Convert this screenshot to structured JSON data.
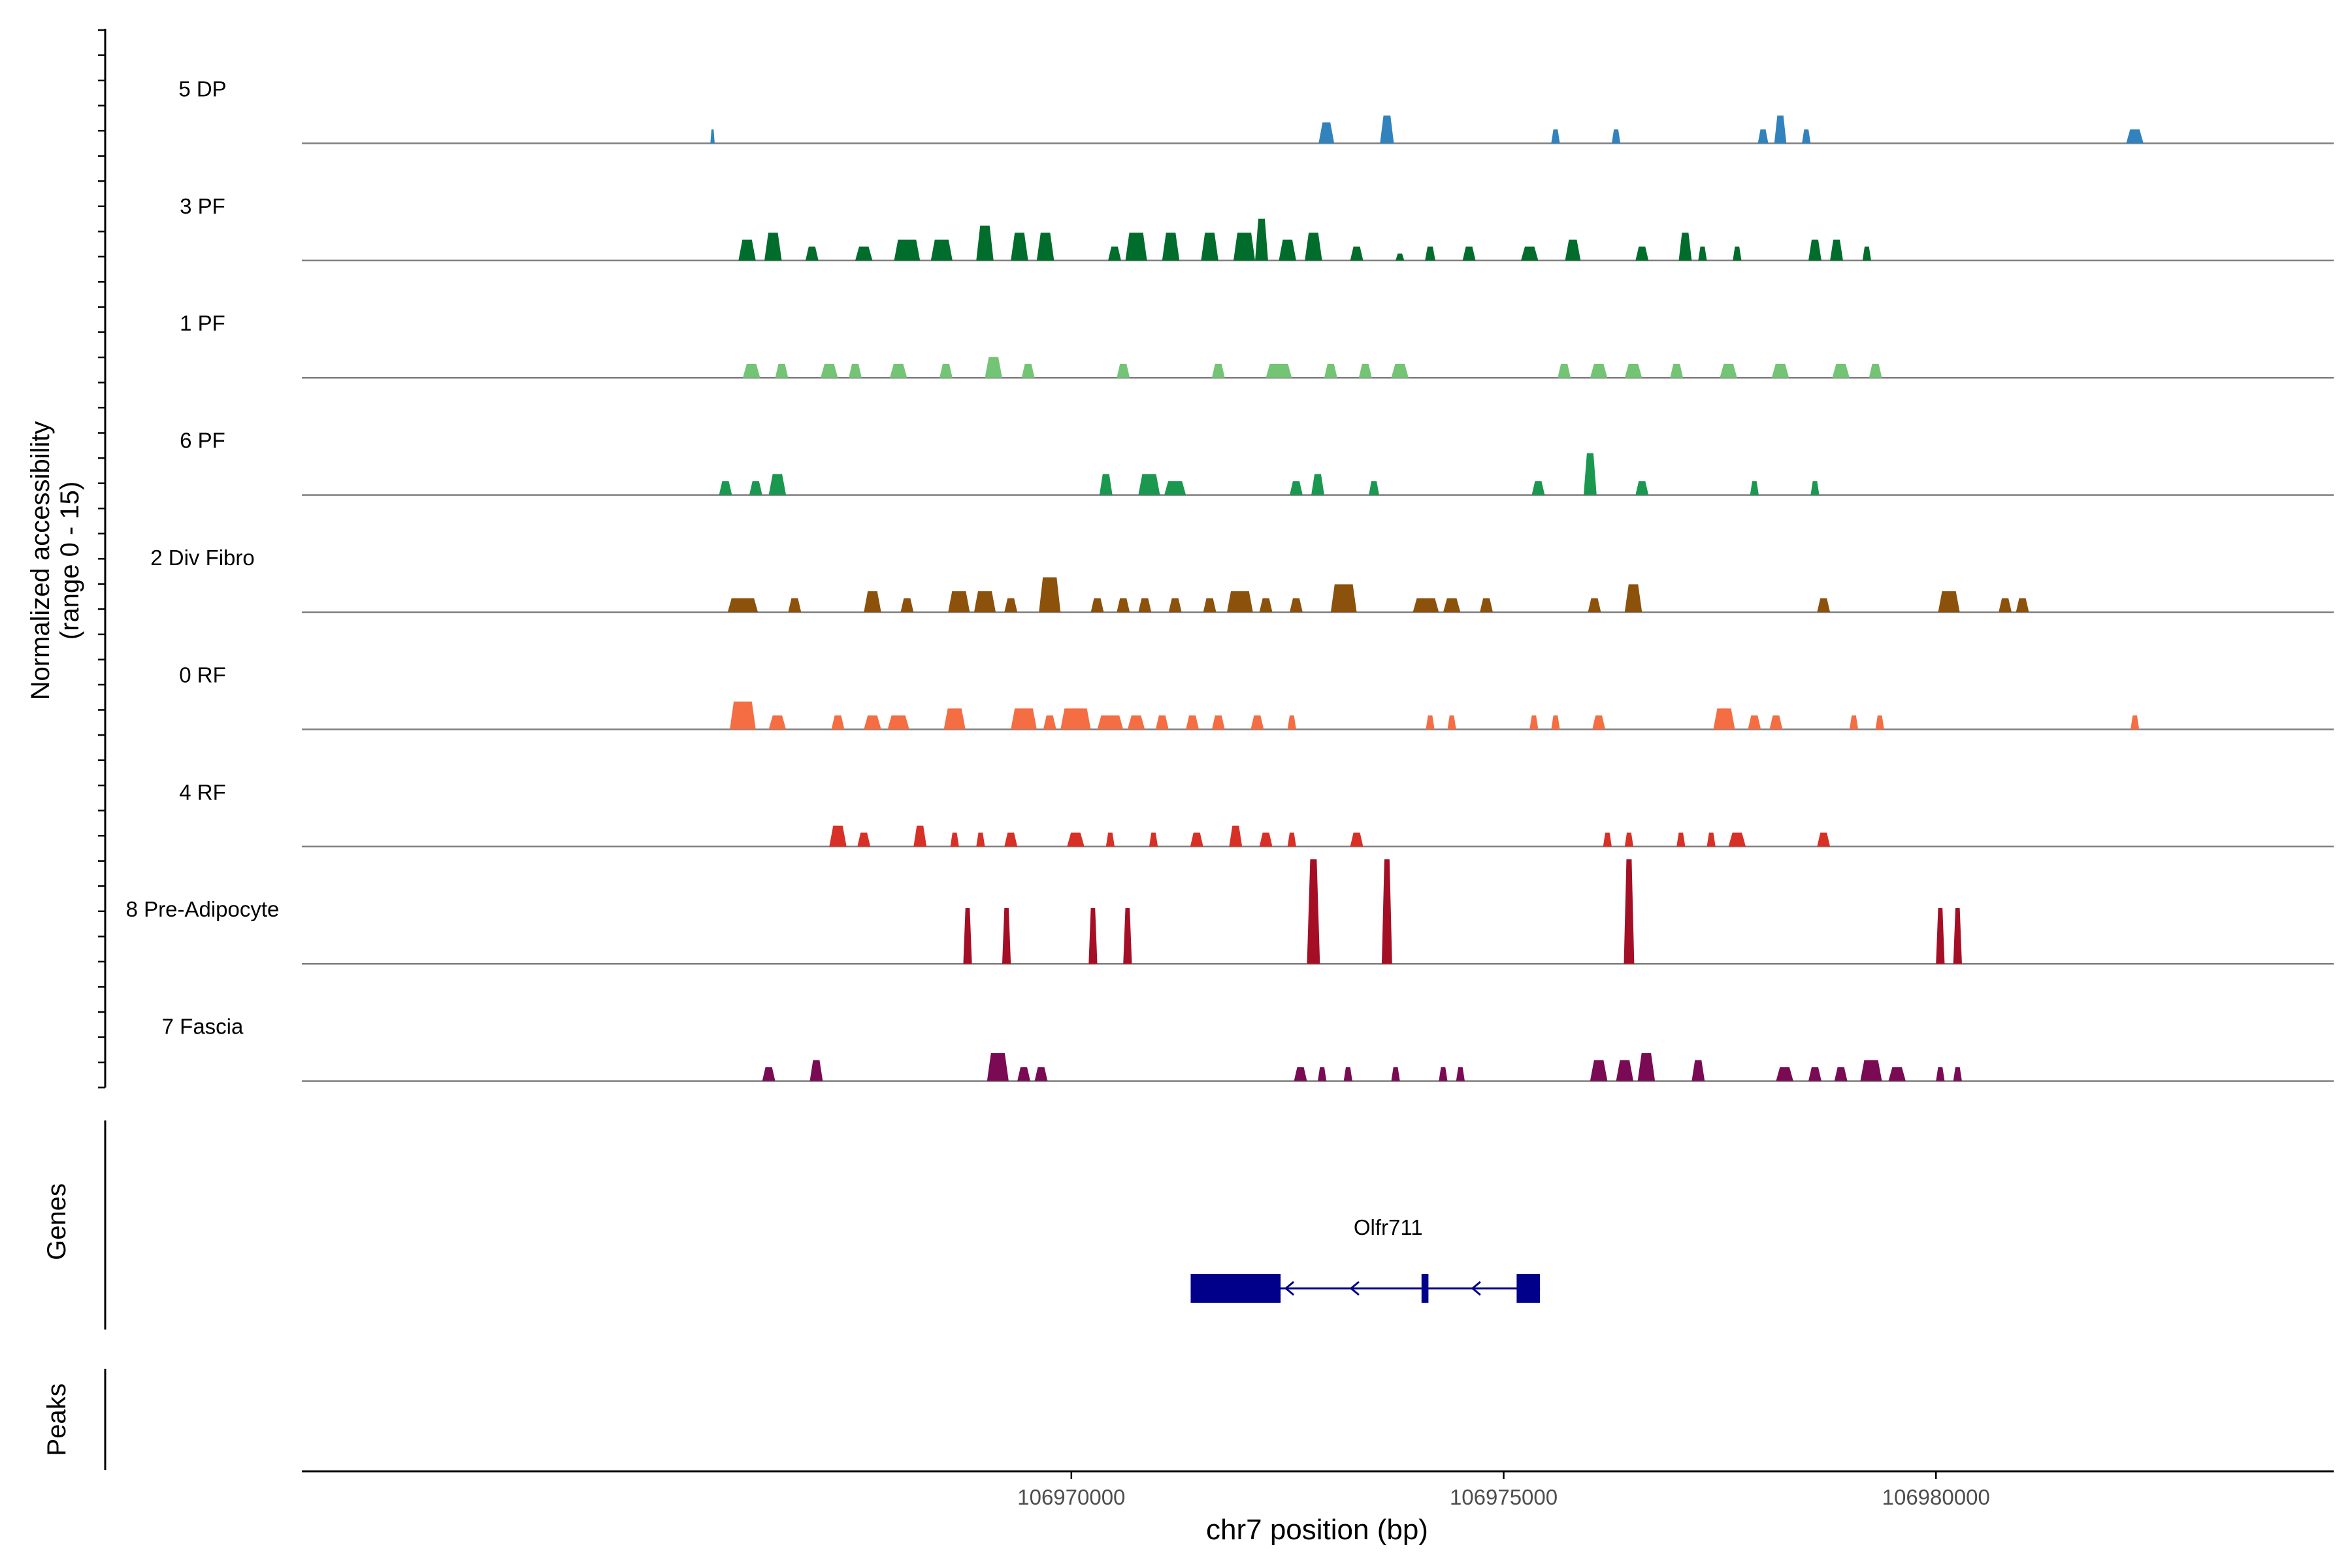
{
  "chart_data": {
    "type": "area",
    "title": "",
    "chromosome": "chr7",
    "xlabel": "chr7 position (bp)",
    "ylabel": "Normalized accessibility",
    "ylabel_range": "(range 0 - 15)",
    "xlim": [
      106961100,
      106984600
    ],
    "ylim": [
      0,
      15
    ],
    "x_ticks": [
      {
        "value": 106970000,
        "label": "106970000"
      },
      {
        "value": 106975000,
        "label": "106975000"
      },
      {
        "value": 106980000,
        "label": "106980000"
      }
    ],
    "series": [
      {
        "name": "5 DP",
        "color": "#3182BD",
        "peaks": [
          [
            106965850,
            50,
            2
          ],
          [
            106972950,
            180,
            3
          ],
          [
            106973650,
            160,
            4
          ],
          [
            106975600,
            100,
            2
          ],
          [
            106976300,
            100,
            2
          ],
          [
            106978000,
            120,
            2
          ],
          [
            106978200,
            140,
            4
          ],
          [
            106978500,
            100,
            2
          ],
          [
            106982300,
            200,
            2
          ]
        ]
      },
      {
        "name": "3 PF",
        "color": "#006D2C",
        "peaks": [
          [
            106966250,
            200,
            3
          ],
          [
            106966550,
            200,
            4
          ],
          [
            106967000,
            150,
            2
          ],
          [
            106967600,
            200,
            2
          ],
          [
            106968100,
            300,
            3
          ],
          [
            106968500,
            250,
            3
          ],
          [
            106969000,
            200,
            5
          ],
          [
            106969400,
            200,
            4
          ],
          [
            106969700,
            200,
            4
          ],
          [
            106970500,
            150,
            2
          ],
          [
            106970750,
            250,
            4
          ],
          [
            106971150,
            200,
            4
          ],
          [
            106971600,
            200,
            4
          ],
          [
            106972000,
            250,
            4
          ],
          [
            106972200,
            150,
            6
          ],
          [
            106972500,
            200,
            3
          ],
          [
            106972800,
            200,
            4
          ],
          [
            106973300,
            150,
            2
          ],
          [
            106973800,
            100,
            1
          ],
          [
            106974150,
            120,
            2
          ],
          [
            106974600,
            150,
            2
          ],
          [
            106975300,
            200,
            2
          ],
          [
            106975800,
            180,
            3
          ],
          [
            106976600,
            150,
            2
          ],
          [
            106977100,
            150,
            4
          ],
          [
            106977300,
            100,
            2
          ],
          [
            106977700,
            100,
            2
          ],
          [
            106978600,
            150,
            3
          ],
          [
            106978850,
            150,
            3
          ],
          [
            106979200,
            100,
            2
          ]
        ]
      },
      {
        "name": "1 PF",
        "color": "#74C476",
        "peaks": [
          [
            106966300,
            200,
            2
          ],
          [
            106966650,
            150,
            2
          ],
          [
            106967200,
            200,
            2
          ],
          [
            106967500,
            150,
            2
          ],
          [
            106968000,
            200,
            2
          ],
          [
            106968550,
            150,
            2
          ],
          [
            106969100,
            200,
            3
          ],
          [
            106969500,
            150,
            2
          ],
          [
            106970600,
            150,
            2
          ],
          [
            106971700,
            150,
            2
          ],
          [
            106972400,
            300,
            2
          ],
          [
            106973000,
            150,
            2
          ],
          [
            106973400,
            150,
            2
          ],
          [
            106973800,
            200,
            2
          ],
          [
            106975700,
            150,
            2
          ],
          [
            106976100,
            200,
            2
          ],
          [
            106976500,
            200,
            2
          ],
          [
            106977000,
            150,
            2
          ],
          [
            106977600,
            200,
            2
          ],
          [
            106978200,
            200,
            2
          ],
          [
            106978900,
            200,
            2
          ],
          [
            106979300,
            150,
            2
          ]
        ]
      },
      {
        "name": "6 PF",
        "color": "#1A9850",
        "peaks": [
          [
            106966000,
            150,
            2
          ],
          [
            106966350,
            150,
            2
          ],
          [
            106966600,
            200,
            3
          ],
          [
            106970400,
            150,
            3
          ],
          [
            106970900,
            250,
            3
          ],
          [
            106971200,
            250,
            2
          ],
          [
            106972600,
            150,
            2
          ],
          [
            106972850,
            150,
            3
          ],
          [
            106973500,
            120,
            2
          ],
          [
            106975400,
            150,
            2
          ],
          [
            106976000,
            150,
            6
          ],
          [
            106976600,
            150,
            2
          ],
          [
            106977900,
            100,
            2
          ],
          [
            106978600,
            100,
            2
          ]
        ]
      },
      {
        "name": "2 Div Fibro",
        "color": "#8C510A",
        "peaks": [
          [
            106966200,
            350,
            2
          ],
          [
            106966800,
            150,
            2
          ],
          [
            106967700,
            200,
            3
          ],
          [
            106968100,
            150,
            2
          ],
          [
            106968700,
            250,
            3
          ],
          [
            106969000,
            250,
            3
          ],
          [
            106969300,
            150,
            2
          ],
          [
            106969750,
            250,
            5
          ],
          [
            106970300,
            150,
            2
          ],
          [
            106970600,
            150,
            2
          ],
          [
            106970850,
            150,
            2
          ],
          [
            106971200,
            150,
            2
          ],
          [
            106971600,
            150,
            2
          ],
          [
            106971950,
            300,
            3
          ],
          [
            106972250,
            150,
            2
          ],
          [
            106972600,
            150,
            2
          ],
          [
            106973150,
            300,
            4
          ],
          [
            106974100,
            300,
            2
          ],
          [
            106974400,
            200,
            2
          ],
          [
            106974800,
            150,
            2
          ],
          [
            106976050,
            150,
            2
          ],
          [
            106976500,
            200,
            4
          ],
          [
            106978700,
            150,
            2
          ],
          [
            106980150,
            250,
            3
          ],
          [
            106980800,
            150,
            2
          ],
          [
            106981000,
            150,
            2
          ]
        ]
      },
      {
        "name": "0 RF",
        "color": "#F46D43",
        "peaks": [
          [
            106966200,
            300,
            4
          ],
          [
            106966600,
            200,
            2
          ],
          [
            106967300,
            150,
            2
          ],
          [
            106967700,
            200,
            2
          ],
          [
            106968000,
            250,
            2
          ],
          [
            106968650,
            250,
            3
          ],
          [
            106969450,
            300,
            3
          ],
          [
            106969750,
            150,
            2
          ],
          [
            106970050,
            350,
            3
          ],
          [
            106970450,
            300,
            2
          ],
          [
            106970750,
            200,
            2
          ],
          [
            106971050,
            150,
            2
          ],
          [
            106971400,
            150,
            2
          ],
          [
            106971700,
            150,
            2
          ],
          [
            106972150,
            150,
            2
          ],
          [
            106972550,
            100,
            2
          ],
          [
            106974150,
            100,
            2
          ],
          [
            106974400,
            100,
            2
          ],
          [
            106975350,
            100,
            2
          ],
          [
            106975600,
            100,
            2
          ],
          [
            106976100,
            150,
            2
          ],
          [
            106977550,
            250,
            3
          ],
          [
            106977900,
            150,
            2
          ],
          [
            106978150,
            150,
            2
          ],
          [
            106979050,
            100,
            2
          ],
          [
            106979350,
            100,
            2
          ],
          [
            106982300,
            100,
            2
          ]
        ]
      },
      {
        "name": "4 RF",
        "color": "#D73027",
        "peaks": [
          [
            106967300,
            200,
            3
          ],
          [
            106967600,
            150,
            2
          ],
          [
            106968250,
            150,
            3
          ],
          [
            106968650,
            100,
            2
          ],
          [
            106968950,
            100,
            2
          ],
          [
            106969300,
            150,
            2
          ],
          [
            106970050,
            200,
            2
          ],
          [
            106970450,
            100,
            2
          ],
          [
            106970950,
            100,
            2
          ],
          [
            106971450,
            150,
            2
          ],
          [
            106971900,
            150,
            3
          ],
          [
            106972250,
            150,
            2
          ],
          [
            106972550,
            100,
            2
          ],
          [
            106973300,
            150,
            2
          ],
          [
            106976200,
            100,
            2
          ],
          [
            106976450,
            100,
            2
          ],
          [
            106977050,
            100,
            2
          ],
          [
            106977400,
            100,
            2
          ],
          [
            106977700,
            200,
            2
          ],
          [
            106978700,
            150,
            2
          ]
        ]
      },
      {
        "name": "8 Pre-Adipocyte",
        "color": "#A50F25",
        "peaks": [
          [
            106968800,
            100,
            8
          ],
          [
            106969250,
            100,
            8
          ],
          [
            106970250,
            100,
            8
          ],
          [
            106970650,
            100,
            8
          ],
          [
            106972800,
            150,
            15
          ],
          [
            106973650,
            120,
            15
          ],
          [
            106976450,
            120,
            15
          ],
          [
            106980050,
            100,
            8
          ],
          [
            106980250,
            100,
            8
          ]
        ]
      },
      {
        "name": "7 Fascia",
        "color": "#7A0A53",
        "peaks": [
          [
            106966500,
            150,
            2
          ],
          [
            106967050,
            150,
            3
          ],
          [
            106969150,
            250,
            4
          ],
          [
            106969450,
            150,
            2
          ],
          [
            106969650,
            150,
            2
          ],
          [
            106972650,
            150,
            2
          ],
          [
            106972900,
            100,
            2
          ],
          [
            106973200,
            100,
            2
          ],
          [
            106973750,
            100,
            2
          ],
          [
            106974300,
            100,
            2
          ],
          [
            106974500,
            100,
            2
          ],
          [
            106976100,
            200,
            3
          ],
          [
            106976400,
            200,
            3
          ],
          [
            106976650,
            200,
            4
          ],
          [
            106977250,
            150,
            3
          ],
          [
            106978250,
            200,
            2
          ],
          [
            106978600,
            150,
            2
          ],
          [
            106978900,
            150,
            2
          ],
          [
            106979250,
            250,
            3
          ],
          [
            106979550,
            200,
            2
          ],
          [
            106980050,
            100,
            2
          ],
          [
            106980250,
            100,
            2
          ]
        ]
      }
    ],
    "genes": {
      "label": "Genes",
      "color": "#00008B",
      "items": [
        {
          "name": "Olfr711",
          "start": 106971380,
          "end": 106975420,
          "strand": "-",
          "exons": [
            [
              106971380,
              106972420
            ],
            [
              106974050,
              106974130
            ],
            [
              106975150,
              106975420
            ]
          ],
          "thick_exons": [
            106971380,
            106972420
          ]
        }
      ]
    },
    "peaks_track": {
      "label": "Peaks"
    }
  }
}
